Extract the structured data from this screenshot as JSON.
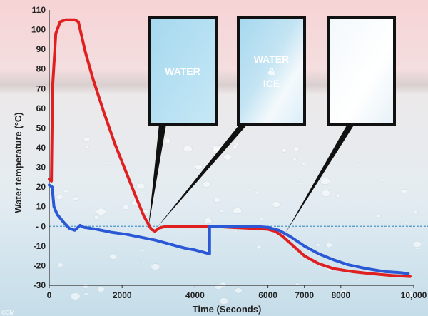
{
  "chart_data": {
    "type": "line",
    "xlabel": "Time (Seconds)",
    "ylabel": "Water temperature (°C)",
    "xlim": [
      0,
      10000
    ],
    "ylim": [
      -30,
      110
    ],
    "x_ticks": [
      {
        "value": 0,
        "label": "0"
      },
      {
        "value": 2000,
        "label": "2000"
      },
      {
        "value": 4000,
        "label": "4000"
      },
      {
        "value": 6000,
        "label": "6000"
      },
      {
        "value": 7000,
        "label": "7000"
      },
      {
        "value": 8000,
        "label": "8000"
      },
      {
        "value": 10000,
        "label": "10,000"
      }
    ],
    "y_ticks": [
      {
        "value": 110,
        "label": "110"
      },
      {
        "value": 100,
        "label": "100"
      },
      {
        "value": 90,
        "label": "90"
      },
      {
        "value": 80,
        "label": "80"
      },
      {
        "value": 70,
        "label": "70"
      },
      {
        "value": 60,
        "label": "60"
      },
      {
        "value": 50,
        "label": "50"
      },
      {
        "value": 40,
        "label": "40"
      },
      {
        "value": 30,
        "label": "30"
      },
      {
        "value": 20,
        "label": "20"
      },
      {
        "value": 10,
        "label": "10"
      },
      {
        "value": 0,
        "label": "- 0"
      },
      {
        "value": -10,
        "label": "-10"
      },
      {
        "value": -20,
        "label": "-20"
      },
      {
        "value": -30,
        "label": "-30"
      }
    ],
    "zero_line": true,
    "series": [
      {
        "color": "#e02020",
        "points": [
          [
            0,
            24
          ],
          [
            60,
            23
          ],
          [
            90,
            70
          ],
          [
            180,
            98
          ],
          [
            300,
            104
          ],
          [
            450,
            105
          ],
          [
            700,
            105
          ],
          [
            800,
            104
          ],
          [
            850,
            100
          ],
          [
            1000,
            88
          ],
          [
            1200,
            75
          ],
          [
            1500,
            58
          ],
          [
            1800,
            42
          ],
          [
            2100,
            28
          ],
          [
            2400,
            14
          ],
          [
            2600,
            5
          ],
          [
            2800,
            -1.5
          ],
          [
            2900,
            -2.5
          ],
          [
            3000,
            -1
          ],
          [
            3200,
            0
          ],
          [
            4000,
            0
          ],
          [
            4500,
            0
          ],
          [
            5000,
            -0.5
          ],
          [
            5500,
            -1
          ],
          [
            6000,
            -1.5
          ],
          [
            6200,
            -2.5
          ],
          [
            6400,
            -5
          ],
          [
            6700,
            -10
          ],
          [
            7000,
            -15
          ],
          [
            7400,
            -19
          ],
          [
            7800,
            -21.5
          ],
          [
            8300,
            -23
          ],
          [
            8800,
            -24
          ],
          [
            9400,
            -25
          ],
          [
            9900,
            -25.5
          ]
        ]
      },
      {
        "color": "#2b59d6",
        "points": [
          [
            0,
            21
          ],
          [
            80,
            20
          ],
          [
            130,
            10
          ],
          [
            220,
            6
          ],
          [
            400,
            2
          ],
          [
            550,
            -1
          ],
          [
            700,
            -2
          ],
          [
            850,
            0.5
          ],
          [
            950,
            -0.5
          ],
          [
            1300,
            -1.5
          ],
          [
            1700,
            -3
          ],
          [
            2100,
            -4
          ],
          [
            2500,
            -5.5
          ],
          [
            2900,
            -7
          ],
          [
            3300,
            -9
          ],
          [
            3700,
            -11
          ],
          [
            4000,
            -12
          ],
          [
            4400,
            -14
          ],
          [
            4400,
            0
          ],
          [
            5000,
            0
          ],
          [
            5600,
            0
          ],
          [
            6000,
            -0.5
          ],
          [
            6300,
            -2
          ],
          [
            6600,
            -5
          ],
          [
            7000,
            -10
          ],
          [
            7400,
            -14
          ],
          [
            7800,
            -17
          ],
          [
            8200,
            -19.5
          ],
          [
            8700,
            -21.5
          ],
          [
            9200,
            -23
          ],
          [
            9600,
            -23.5
          ],
          [
            9850,
            -24
          ]
        ]
      }
    ],
    "panels": [
      {
        "lines": [
          "WATER"
        ],
        "text_color": "#ffffff"
      },
      {
        "lines": [
          "WATER",
          "&",
          "ICE"
        ],
        "text_color": "#ffffff"
      },
      {
        "lines": [
          "ICE"
        ],
        "text_color": "#b9dff0"
      }
    ]
  },
  "credit": "©DM"
}
